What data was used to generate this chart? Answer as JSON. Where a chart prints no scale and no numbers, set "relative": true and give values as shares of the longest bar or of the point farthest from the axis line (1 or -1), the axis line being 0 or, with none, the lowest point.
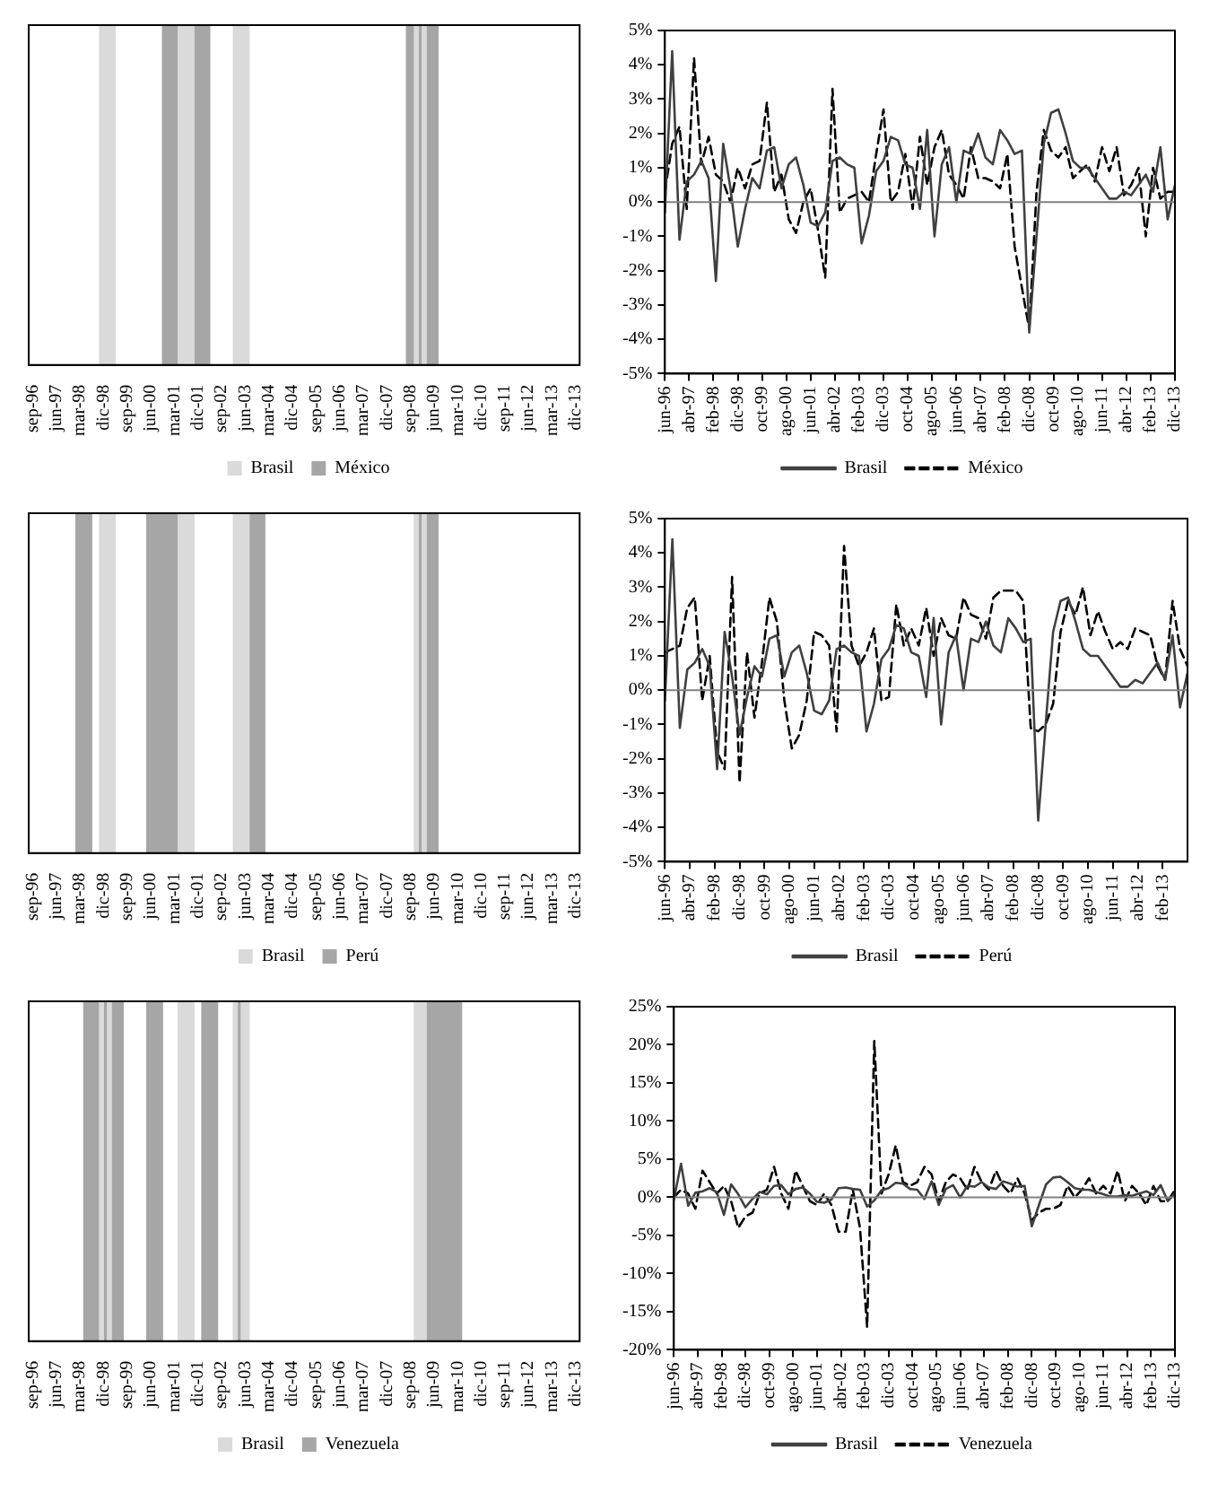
{
  "chart_data": [
    {
      "type": "bar",
      "relative": true,
      "legend": "bottom",
      "categories": [
        "sep-96",
        null,
        null,
        "jun-97",
        null,
        null,
        "mar-98",
        null,
        null,
        "dic-98",
        null,
        null,
        "sep-99",
        null,
        null,
        "jun-00",
        null,
        null,
        "mar-01",
        null,
        null,
        "dic-01",
        null,
        null,
        "sep-02",
        null,
        null,
        "jun-03",
        null,
        null,
        "mar-04",
        null,
        null,
        "dic-04",
        null,
        null,
        "sep-05",
        null,
        null,
        "jun-06",
        null,
        null,
        "mar-07",
        null,
        null,
        "dic-07",
        null,
        null,
        "sep-08",
        null,
        null,
        "jun-09",
        null,
        null,
        "mar-10",
        null,
        null,
        "dic-10",
        null,
        null,
        "sep-11",
        null,
        null,
        "jun-12",
        null,
        null,
        "mar-13",
        null,
        null,
        "dic-13"
      ],
      "series": [
        {
          "name": "Brasil",
          "color": "#dadada",
          "values": [
            null,
            null,
            null,
            null,
            null,
            null,
            null,
            null,
            null,
            1,
            1,
            null,
            null,
            null,
            null,
            null,
            null,
            null,
            null,
            1,
            1,
            null,
            null,
            null,
            null,
            null,
            1,
            1,
            null,
            null,
            null,
            null,
            null,
            null,
            null,
            null,
            null,
            null,
            null,
            null,
            null,
            null,
            null,
            null,
            null,
            null,
            null,
            null,
            null,
            1,
            1,
            null,
            null,
            null,
            null,
            null,
            null,
            null,
            null,
            null,
            null,
            null,
            null,
            null,
            null,
            null,
            null,
            null,
            null,
            null
          ]
        },
        {
          "name": "México",
          "color": "#a6a6a6",
          "values": [
            null,
            null,
            null,
            null,
            null,
            null,
            null,
            null,
            null,
            null,
            null,
            null,
            null,
            null,
            null,
            null,
            null,
            1,
            1,
            null,
            null,
            1,
            1,
            null,
            null,
            null,
            null,
            null,
            null,
            null,
            null,
            null,
            null,
            null,
            null,
            null,
            null,
            null,
            null,
            null,
            null,
            null,
            null,
            null,
            null,
            null,
            null,
            null,
            1,
            1,
            1,
            1,
            null,
            null,
            null,
            null,
            null,
            null,
            null,
            null,
            null,
            null,
            null,
            null,
            null,
            null,
            null,
            null,
            null,
            null
          ]
        }
      ]
    },
    {
      "type": "line",
      "legend": "bottom",
      "x": [
        "1996-06",
        "1996-09",
        "1996-12",
        "1997-03",
        "1997-06",
        "1997-09",
        "1997-12",
        "1998-03",
        "1998-06",
        "1998-09",
        "1998-12",
        "1999-03",
        "1999-06",
        "1999-09",
        "1999-12",
        "2000-03",
        "2000-06",
        "2000-09",
        "2000-12",
        "2001-03",
        "2001-06",
        "2001-09",
        "2001-12",
        "2002-03",
        "2002-06",
        "2002-09",
        "2002-12",
        "2003-03",
        "2003-06",
        "2003-09",
        "2003-12",
        "2004-03",
        "2004-06",
        "2004-09",
        "2004-12",
        "2005-03",
        "2005-06",
        "2005-09",
        "2005-12",
        "2006-03",
        "2006-06",
        "2006-09",
        "2006-12",
        "2007-03",
        "2007-06",
        "2007-09",
        "2007-12",
        "2008-03",
        "2008-06",
        "2008-09",
        "2008-12",
        "2009-03",
        "2009-06",
        "2009-09",
        "2009-12",
        "2010-03",
        "2010-06",
        "2010-09",
        "2010-12",
        "2011-03",
        "2011-06",
        "2011-09",
        "2011-12",
        "2012-03",
        "2012-06",
        "2012-09",
        "2012-12",
        "2013-03",
        "2013-06",
        "2013-09",
        "2013-12"
      ],
      "xlim": [
        "1996-06",
        "2013-12"
      ],
      "xticks": [
        {
          "value": "1996-06",
          "label": "jun-96"
        },
        {
          "value": "1997-04",
          "label": "abr-97"
        },
        {
          "value": "1998-02",
          "label": "feb-98"
        },
        {
          "value": "1998-12",
          "label": "dic-98"
        },
        {
          "value": "1999-10",
          "label": "oct-99"
        },
        {
          "value": "2000-08",
          "label": "ago-00"
        },
        {
          "value": "2001-06",
          "label": "jun-01"
        },
        {
          "value": "2002-04",
          "label": "abr-02"
        },
        {
          "value": "2003-02",
          "label": "feb-03"
        },
        {
          "value": "2003-12",
          "label": "dic-03"
        },
        {
          "value": "2004-10",
          "label": "oct-04"
        },
        {
          "value": "2005-08",
          "label": "ago-05"
        },
        {
          "value": "2006-06",
          "label": "jun-06"
        },
        {
          "value": "2007-04",
          "label": "abr-07"
        },
        {
          "value": "2008-02",
          "label": "feb-08"
        },
        {
          "value": "2008-12",
          "label": "dic-08"
        },
        {
          "value": "2009-10",
          "label": "oct-09"
        },
        {
          "value": "2010-08",
          "label": "ago-10"
        },
        {
          "value": "2011-06",
          "label": "jun-11"
        },
        {
          "value": "2012-04",
          "label": "abr-12"
        },
        {
          "value": "2013-02",
          "label": "feb-13"
        },
        {
          "value": "2013-12",
          "label": "dic-13"
        }
      ],
      "ylim": [
        -5,
        5
      ],
      "yticks": [
        {
          "value": -5,
          "label": "-5%"
        },
        {
          "value": -4,
          "label": "-4%"
        },
        {
          "value": -3,
          "label": "-3%"
        },
        {
          "value": -2,
          "label": "-2%"
        },
        {
          "value": -1,
          "label": "-1%"
        },
        {
          "value": 0,
          "label": "0%"
        },
        {
          "value": 1,
          "label": "1%"
        },
        {
          "value": 2,
          "label": "2%"
        },
        {
          "value": 3,
          "label": "3%"
        },
        {
          "value": 4,
          "label": "4%"
        },
        {
          "value": 5,
          "label": "5%"
        }
      ],
      "series": [
        {
          "name": "Brasil",
          "color": "#404040",
          "line_style": "solid",
          "values": [
            -0.3,
            4.4,
            -1.1,
            0.6,
            0.8,
            1.2,
            0.7,
            -2.3,
            1.7,
            0.4,
            -1.3,
            -0.2,
            0.7,
            0.4,
            1.5,
            1.6,
            0.4,
            1.1,
            1.3,
            0.5,
            -0.6,
            -0.7,
            -0.3,
            1.2,
            1.3,
            1.1,
            1.0,
            -1.2,
            -0.4,
            0.9,
            1.2,
            1.9,
            1.8,
            1.1,
            1.0,
            -0.2,
            2.1,
            -1.0,
            1.1,
            1.6,
            0.0,
            1.5,
            1.4,
            2.0,
            1.3,
            1.1,
            2.1,
            1.8,
            1.4,
            1.5,
            -3.8,
            -1.0,
            1.7,
            2.6,
            2.7,
            2.0,
            1.2,
            1.0,
            1.0,
            0.7,
            0.4,
            0.1,
            0.1,
            0.3,
            0.2,
            0.5,
            0.8,
            0.3,
            1.6,
            -0.5,
            0.5
          ]
        },
        {
          "name": "México",
          "color": "#000000",
          "line_style": "dashed",
          "values": [
            0.3,
            1.7,
            2.2,
            -0.2,
            4.2,
            1.1,
            1.9,
            0.8,
            0.6,
            0.0,
            1.0,
            0.4,
            1.1,
            1.2,
            2.9,
            0.3,
            0.8,
            -0.5,
            -0.9,
            0.0,
            0.4,
            -0.8,
            -2.2,
            3.3,
            -0.3,
            0.1,
            0.2,
            0.3,
            0.0,
            1.4,
            2.7,
            0.0,
            0.3,
            1.4,
            -0.2,
            1.9,
            0.5,
            1.6,
            2.1,
            0.8,
            0.5,
            0.1,
            1.6,
            0.7,
            0.7,
            0.6,
            0.4,
            1.4,
            -1.3,
            -2.5,
            -3.7,
            0.3,
            2.1,
            1.5,
            1.3,
            1.6,
            0.7,
            0.9,
            1.1,
            0.6,
            1.6,
            0.9,
            1.6,
            0.2,
            0.5,
            1.0,
            -1.0,
            1.0,
            0.1,
            0.3,
            0.3
          ]
        }
      ]
    },
    {
      "type": "bar",
      "relative": true,
      "legend": "bottom",
      "categories": [
        "sep-96",
        null,
        null,
        "jun-97",
        null,
        null,
        "mar-98",
        null,
        null,
        "dic-98",
        null,
        null,
        "sep-99",
        null,
        null,
        "jun-00",
        null,
        null,
        "mar-01",
        null,
        null,
        "dic-01",
        null,
        null,
        "sep-02",
        null,
        null,
        "jun-03",
        null,
        null,
        "mar-04",
        null,
        null,
        "dic-04",
        null,
        null,
        "sep-05",
        null,
        null,
        "jun-06",
        null,
        null,
        "mar-07",
        null,
        null,
        "dic-07",
        null,
        null,
        "sep-08",
        null,
        null,
        "jun-09",
        null,
        null,
        "mar-10",
        null,
        null,
        "dic-10",
        null,
        null,
        "sep-11",
        null,
        null,
        "jun-12",
        null,
        null,
        "mar-13",
        null,
        null,
        "dic-13"
      ],
      "series": [
        {
          "name": "Brasil",
          "color": "#dadada",
          "values": [
            null,
            null,
            null,
            null,
            null,
            null,
            null,
            null,
            null,
            1,
            1,
            null,
            null,
            null,
            null,
            null,
            null,
            null,
            null,
            1,
            1,
            null,
            null,
            null,
            null,
            null,
            1,
            1,
            null,
            null,
            null,
            null,
            null,
            null,
            null,
            null,
            null,
            null,
            null,
            null,
            null,
            null,
            null,
            null,
            null,
            null,
            null,
            null,
            null,
            1,
            1,
            null,
            null,
            null,
            null,
            null,
            null,
            null,
            null,
            null,
            null,
            null,
            null,
            null,
            null,
            null,
            null,
            null,
            null,
            null
          ]
        },
        {
          "name": "Perú",
          "color": "#a6a6a6",
          "values": [
            null,
            null,
            null,
            null,
            null,
            null,
            1,
            1,
            null,
            null,
            null,
            null,
            null,
            null,
            null,
            1,
            1,
            1,
            1,
            null,
            null,
            null,
            null,
            null,
            null,
            null,
            null,
            null,
            1,
            1,
            null,
            null,
            null,
            null,
            null,
            null,
            null,
            null,
            null,
            null,
            null,
            null,
            null,
            null,
            null,
            null,
            null,
            null,
            null,
            1,
            1,
            1,
            null,
            null,
            null,
            null,
            null,
            null,
            null,
            null,
            null,
            null,
            null,
            null,
            null,
            null,
            null,
            null,
            null,
            null
          ]
        }
      ]
    },
    {
      "type": "line",
      "legend": "bottom",
      "x": [
        "1996-06",
        "1996-09",
        "1996-12",
        "1997-03",
        "1997-06",
        "1997-09",
        "1997-12",
        "1998-03",
        "1998-06",
        "1998-09",
        "1998-12",
        "1999-03",
        "1999-06",
        "1999-09",
        "1999-12",
        "2000-03",
        "2000-06",
        "2000-09",
        "2000-12",
        "2001-03",
        "2001-06",
        "2001-09",
        "2001-12",
        "2002-03",
        "2002-06",
        "2002-09",
        "2002-12",
        "2003-03",
        "2003-06",
        "2003-09",
        "2003-12",
        "2004-03",
        "2004-06",
        "2004-09",
        "2004-12",
        "2005-03",
        "2005-06",
        "2005-09",
        "2005-12",
        "2006-03",
        "2006-06",
        "2006-09",
        "2006-12",
        "2007-03",
        "2007-06",
        "2007-09",
        "2007-12",
        "2008-03",
        "2008-06",
        "2008-09",
        "2008-12",
        "2009-03",
        "2009-06",
        "2009-09",
        "2009-12",
        "2010-03",
        "2010-06",
        "2010-09",
        "2010-12",
        "2011-03",
        "2011-06",
        "2011-09",
        "2011-12",
        "2012-03",
        "2012-06",
        "2012-09",
        "2012-12",
        "2013-03",
        "2013-06",
        "2013-09",
        "2013-12"
      ],
      "xlim": [
        "1996-06",
        "2013-12"
      ],
      "xticks": [
        {
          "value": "1996-06",
          "label": "jun-96"
        },
        {
          "value": "1997-04",
          "label": "abr-97"
        },
        {
          "value": "1998-02",
          "label": "feb-98"
        },
        {
          "value": "1998-12",
          "label": "dic-98"
        },
        {
          "value": "1999-10",
          "label": "oct-99"
        },
        {
          "value": "2000-08",
          "label": "ago-00"
        },
        {
          "value": "2001-06",
          "label": "jun-01"
        },
        {
          "value": "2002-04",
          "label": "abr-02"
        },
        {
          "value": "2003-02",
          "label": "feb-03"
        },
        {
          "value": "2003-12",
          "label": "dic-03"
        },
        {
          "value": "2004-10",
          "label": "oct-04"
        },
        {
          "value": "2005-08",
          "label": "ago-05"
        },
        {
          "value": "2006-06",
          "label": "jun-06"
        },
        {
          "value": "2007-04",
          "label": "abr-07"
        },
        {
          "value": "2008-02",
          "label": "feb-08"
        },
        {
          "value": "2008-12",
          "label": "dic-08"
        },
        {
          "value": "2009-10",
          "label": "oct-09"
        },
        {
          "value": "2010-08",
          "label": "ago-10"
        },
        {
          "value": "2011-06",
          "label": "jun-11"
        },
        {
          "value": "2012-04",
          "label": "abr-12"
        },
        {
          "value": "2013-02",
          "label": "feb-13"
        }
      ],
      "ylim": [
        -5,
        5
      ],
      "yticks": [
        {
          "value": -5,
          "label": "-5%"
        },
        {
          "value": -4,
          "label": "-4%"
        },
        {
          "value": -3,
          "label": "-3%"
        },
        {
          "value": -2,
          "label": "-2%"
        },
        {
          "value": -1,
          "label": "-1%"
        },
        {
          "value": 0,
          "label": "0%"
        },
        {
          "value": 1,
          "label": "1%"
        },
        {
          "value": 2,
          "label": "2%"
        },
        {
          "value": 3,
          "label": "3%"
        },
        {
          "value": 4,
          "label": "4%"
        },
        {
          "value": 5,
          "label": "5%"
        }
      ],
      "series": [
        {
          "name": "Brasil",
          "color": "#404040",
          "line_style": "solid",
          "values": [
            -0.3,
            4.4,
            -1.1,
            0.6,
            0.8,
            1.2,
            0.7,
            -2.3,
            1.7,
            0.4,
            -1.3,
            -0.2,
            0.7,
            0.4,
            1.5,
            1.6,
            0.4,
            1.1,
            1.3,
            0.5,
            -0.6,
            -0.7,
            -0.3,
            1.2,
            1.3,
            1.1,
            1.0,
            -1.2,
            -0.4,
            0.9,
            1.2,
            1.9,
            1.8,
            1.1,
            1.0,
            -0.2,
            2.1,
            -1.0,
            1.1,
            1.6,
            0.0,
            1.5,
            1.4,
            2.0,
            1.3,
            1.1,
            2.1,
            1.8,
            1.4,
            1.5,
            -3.8,
            -1.0,
            1.7,
            2.6,
            2.7,
            2.0,
            1.2,
            1.0,
            1.0,
            0.7,
            0.4,
            0.1,
            0.1,
            0.3,
            0.2,
            0.5,
            0.8,
            0.3,
            1.6,
            -0.5,
            0.5
          ]
        },
        {
          "name": "Perú",
          "color": "#000000",
          "line_style": "dashed",
          "values": [
            1.1,
            1.2,
            1.3,
            2.4,
            2.7,
            -0.3,
            1.0,
            -1.8,
            -2.3,
            3.3,
            -2.7,
            1.1,
            -0.8,
            0.8,
            2.7,
            2.0,
            -0.3,
            -1.7,
            -1.3,
            -0.3,
            1.7,
            1.6,
            1.3,
            -1.2,
            4.2,
            1.3,
            0.7,
            1.1,
            1.8,
            -0.3,
            -0.2,
            2.5,
            1.3,
            1.8,
            1.3,
            2.4,
            1.0,
            2.1,
            1.6,
            1.5,
            2.7,
            2.2,
            2.1,
            1.5,
            2.7,
            2.9,
            2.9,
            2.9,
            2.6,
            -1.1,
            -1.2,
            -1.0,
            -0.4,
            1.7,
            2.6,
            2.2,
            3.0,
            1.6,
            2.3,
            1.7,
            1.2,
            1.4,
            1.2,
            1.8,
            1.7,
            1.6,
            0.7,
            0.3,
            2.6,
            1.2,
            0.7
          ]
        }
      ]
    },
    {
      "type": "bar",
      "relative": true,
      "legend": "bottom",
      "categories": [
        "sep-96",
        null,
        null,
        "jun-97",
        null,
        null,
        "mar-98",
        null,
        null,
        "dic-98",
        null,
        null,
        "sep-99",
        null,
        null,
        "jun-00",
        null,
        null,
        "mar-01",
        null,
        null,
        "dic-01",
        null,
        null,
        "sep-02",
        null,
        null,
        "jun-03",
        null,
        null,
        "mar-04",
        null,
        null,
        "dic-04",
        null,
        null,
        "sep-05",
        null,
        null,
        "jun-06",
        null,
        null,
        "mar-07",
        null,
        null,
        "dic-07",
        null,
        null,
        "sep-08",
        null,
        null,
        "jun-09",
        null,
        null,
        "mar-10",
        null,
        null,
        "dic-10",
        null,
        null,
        "sep-11",
        null,
        null,
        "jun-12",
        null,
        null,
        "mar-13",
        null,
        null,
        "dic-13"
      ],
      "series": [
        {
          "name": "Brasil",
          "color": "#dadada",
          "values": [
            null,
            null,
            null,
            null,
            null,
            null,
            null,
            null,
            null,
            1,
            1,
            null,
            null,
            null,
            null,
            null,
            null,
            null,
            null,
            1,
            1,
            null,
            null,
            null,
            null,
            null,
            1,
            1,
            null,
            null,
            null,
            null,
            null,
            null,
            null,
            null,
            null,
            null,
            null,
            null,
            null,
            null,
            null,
            null,
            null,
            null,
            null,
            null,
            null,
            1,
            1,
            null,
            null,
            null,
            null,
            null,
            null,
            null,
            null,
            null,
            null,
            null,
            null,
            null,
            null,
            null,
            null,
            null,
            null,
            null
          ]
        },
        {
          "name": "Venezuela",
          "color": "#a6a6a6",
          "values": [
            null,
            null,
            null,
            null,
            null,
            null,
            null,
            1,
            1,
            1,
            1,
            1,
            null,
            null,
            null,
            1,
            1,
            null,
            null,
            null,
            null,
            null,
            1,
            1,
            null,
            null,
            1,
            null,
            null,
            null,
            null,
            null,
            null,
            null,
            null,
            null,
            null,
            null,
            null,
            null,
            null,
            null,
            null,
            null,
            null,
            null,
            null,
            null,
            null,
            null,
            1,
            1,
            1,
            1,
            1,
            null,
            null,
            null,
            null,
            null,
            null,
            null,
            null,
            null,
            null,
            null,
            null,
            null,
            null,
            null
          ]
        }
      ]
    },
    {
      "type": "line",
      "legend": "bottom",
      "x": [
        "1996-06",
        "1996-09",
        "1996-12",
        "1997-03",
        "1997-06",
        "1997-09",
        "1997-12",
        "1998-03",
        "1998-06",
        "1998-09",
        "1998-12",
        "1999-03",
        "1999-06",
        "1999-09",
        "1999-12",
        "2000-03",
        "2000-06",
        "2000-09",
        "2000-12",
        "2001-03",
        "2001-06",
        "2001-09",
        "2001-12",
        "2002-03",
        "2002-06",
        "2002-09",
        "2002-12",
        "2003-03",
        "2003-06",
        "2003-09",
        "2003-12",
        "2004-03",
        "2004-06",
        "2004-09",
        "2004-12",
        "2005-03",
        "2005-06",
        "2005-09",
        "2005-12",
        "2006-03",
        "2006-06",
        "2006-09",
        "2006-12",
        "2007-03",
        "2007-06",
        "2007-09",
        "2007-12",
        "2008-03",
        "2008-06",
        "2008-09",
        "2008-12",
        "2009-03",
        "2009-06",
        "2009-09",
        "2009-12",
        "2010-03",
        "2010-06",
        "2010-09",
        "2010-12",
        "2011-03",
        "2011-06",
        "2011-09",
        "2011-12",
        "2012-03",
        "2012-06",
        "2012-09",
        "2012-12",
        "2013-03",
        "2013-06",
        "2013-09",
        "2013-12"
      ],
      "xlim": [
        "1996-06",
        "2013-12"
      ],
      "xticks": [
        {
          "value": "1996-06",
          "label": "jun-96"
        },
        {
          "value": "1997-04",
          "label": "abr-97"
        },
        {
          "value": "1998-02",
          "label": "feb-98"
        },
        {
          "value": "1998-12",
          "label": "dic-98"
        },
        {
          "value": "1999-10",
          "label": "oct-99"
        },
        {
          "value": "2000-08",
          "label": "ago-00"
        },
        {
          "value": "2001-06",
          "label": "jun-01"
        },
        {
          "value": "2002-04",
          "label": "abr-02"
        },
        {
          "value": "2003-02",
          "label": "feb-03"
        },
        {
          "value": "2003-12",
          "label": "dic-03"
        },
        {
          "value": "2004-10",
          "label": "oct-04"
        },
        {
          "value": "2005-08",
          "label": "ago-05"
        },
        {
          "value": "2006-06",
          "label": "jun-06"
        },
        {
          "value": "2007-04",
          "label": "abr-07"
        },
        {
          "value": "2008-02",
          "label": "feb-08"
        },
        {
          "value": "2008-12",
          "label": "dic-08"
        },
        {
          "value": "2009-10",
          "label": "oct-09"
        },
        {
          "value": "2010-08",
          "label": "ago-10"
        },
        {
          "value": "2011-06",
          "label": "jun-11"
        },
        {
          "value": "2012-04",
          "label": "abr-12"
        },
        {
          "value": "2013-02",
          "label": "feb-13"
        },
        {
          "value": "2013-12",
          "label": "dic-13"
        }
      ],
      "ylim": [
        -20,
        25
      ],
      "yticks": [
        {
          "value": -20,
          "label": "-20%"
        },
        {
          "value": -15,
          "label": "-15%"
        },
        {
          "value": -10,
          "label": "-10%"
        },
        {
          "value": -5,
          "label": "-5%"
        },
        {
          "value": 0,
          "label": "0%"
        },
        {
          "value": 5,
          "label": "5%"
        },
        {
          "value": 10,
          "label": "10%"
        },
        {
          "value": 15,
          "label": "15%"
        },
        {
          "value": 20,
          "label": "20%"
        },
        {
          "value": 25,
          "label": "25%"
        }
      ],
      "series": [
        {
          "name": "Brasil",
          "color": "#404040",
          "line_style": "solid",
          "values": [
            -0.3,
            4.4,
            -1.1,
            0.6,
            0.8,
            1.2,
            0.7,
            -2.3,
            1.7,
            0.4,
            -1.3,
            -0.2,
            0.7,
            0.4,
            1.5,
            1.6,
            0.4,
            1.1,
            1.3,
            0.5,
            -0.6,
            -0.7,
            -0.3,
            1.2,
            1.3,
            1.1,
            1.0,
            -1.2,
            -0.4,
            0.9,
            1.2,
            1.9,
            1.8,
            1.1,
            1.0,
            -0.2,
            2.1,
            -1.0,
            1.1,
            1.6,
            0.0,
            1.5,
            1.4,
            2.0,
            1.3,
            1.1,
            2.1,
            1.8,
            1.4,
            1.5,
            -3.8,
            -1.0,
            1.7,
            2.6,
            2.7,
            2.0,
            1.2,
            1.0,
            1.0,
            0.7,
            0.4,
            0.1,
            0.1,
            0.3,
            0.2,
            0.5,
            0.8,
            0.3,
            1.6,
            -0.5,
            0.5
          ]
        },
        {
          "name": "Venezuela",
          "color": "#000000",
          "line_style": "dashed",
          "values": [
            0.0,
            1.0,
            0.5,
            -1.5,
            3.5,
            2.0,
            0.5,
            1.5,
            -0.5,
            -4.0,
            -2.5,
            -2.0,
            0.5,
            1.0,
            4.0,
            0.5,
            -1.5,
            3.5,
            1.5,
            -0.5,
            -1.0,
            0.5,
            -1.0,
            -4.5,
            -4.5,
            1.0,
            -4.0,
            -17.0,
            20.5,
            0.5,
            3.0,
            6.8,
            2.0,
            1.5,
            2.0,
            4.0,
            3.0,
            -0.5,
            2.0,
            3.0,
            2.5,
            1.0,
            4.0,
            2.0,
            1.0,
            3.5,
            1.5,
            0.5,
            2.5,
            0.5,
            -3.0,
            -2.0,
            -1.5,
            -1.5,
            -1.0,
            1.5,
            0.0,
            1.0,
            2.5,
            0.5,
            1.5,
            0.5,
            3.5,
            -0.5,
            1.5,
            0.5,
            -1.0,
            1.5,
            -0.5,
            -0.5,
            1.0
          ]
        }
      ]
    }
  ]
}
